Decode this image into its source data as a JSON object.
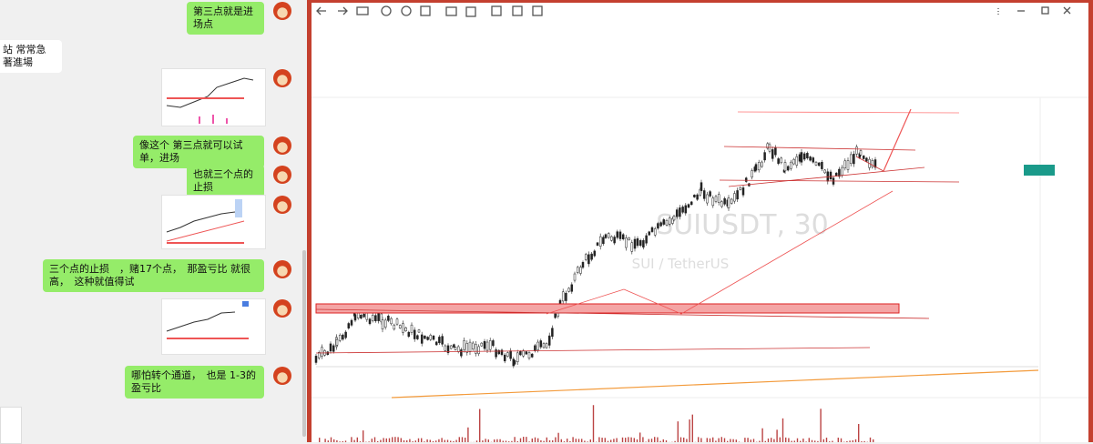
{
  "chat": {
    "messages": [
      {
        "side": "right",
        "text": "第三点就是进场点"
      },
      {
        "side": "left",
        "text": "站 常常急著進場"
      },
      {
        "side": "right",
        "text": "像这个 第三点就可以试单，进场"
      },
      {
        "side": "right",
        "text": "也就三个点的止损"
      },
      {
        "side": "right",
        "text": "三个点的止损　，赌17个点，　那盈亏比 就很高，　这种就值得试"
      },
      {
        "side": "right",
        "text": "哪怕转个通道，　也是 1-3的盈亏比"
      }
    ]
  },
  "viewer": {
    "watermark": {
      "symbol": "SUIUSDT, 30",
      "name": "SUI / TetherUS"
    }
  }
}
